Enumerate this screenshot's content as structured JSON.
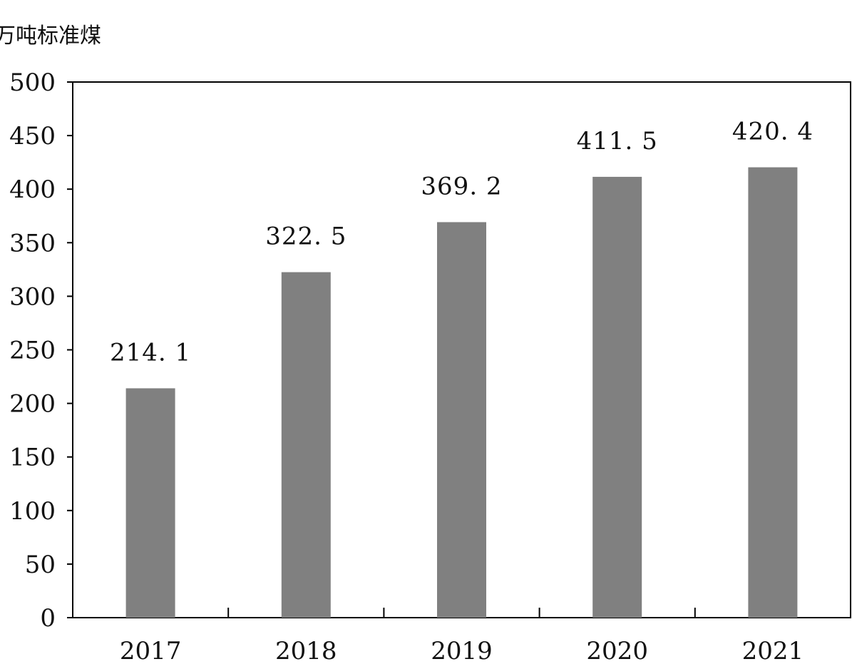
{
  "chart_data": {
    "type": "bar",
    "unit_label": "万吨标准煤",
    "categories": [
      "2017",
      "2018",
      "2019",
      "2020",
      "2021"
    ],
    "values": [
      214.1,
      322.5,
      369.2,
      411.5,
      420.4
    ],
    "data_labels": [
      "214. 1",
      "322. 5",
      "369. 2",
      "411. 5",
      "420. 4"
    ],
    "title": "",
    "xlabel": "",
    "ylabel": "",
    "ylim": [
      0,
      500
    ],
    "yticks": [
      "0",
      "50",
      "100",
      "150",
      "200",
      "250",
      "300",
      "350",
      "400",
      "450",
      "500"
    ],
    "grid": false,
    "bar_color": "#808080"
  }
}
